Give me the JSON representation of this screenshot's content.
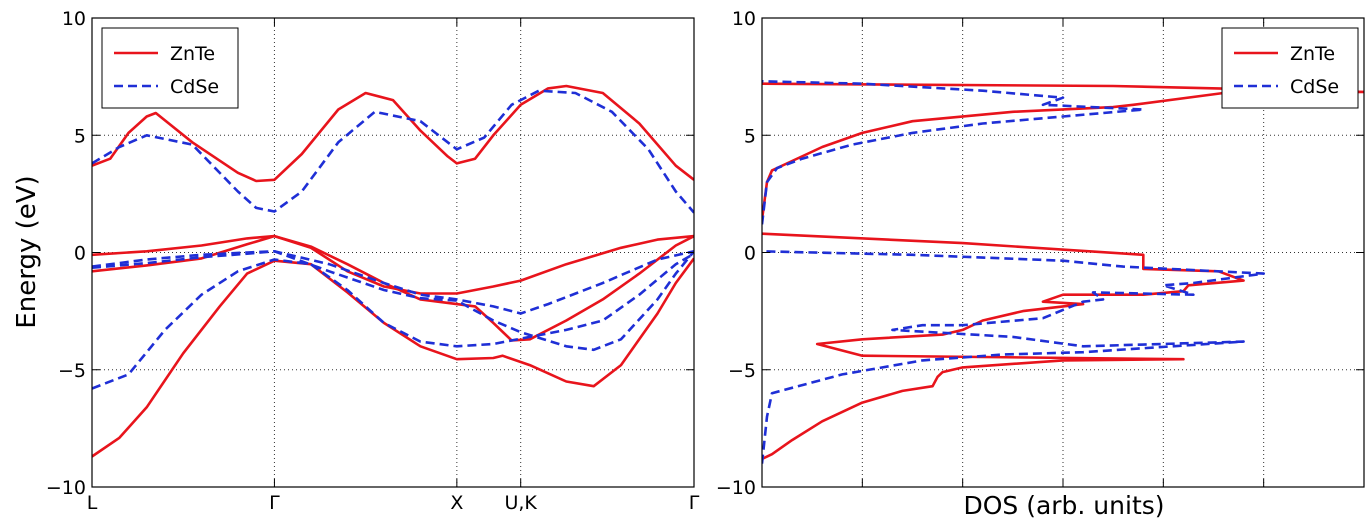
{
  "figure": {
    "y_axis_label": "Energy (eV)",
    "dos_x_label": "DOS (arb. units)",
    "colors": {
      "ZnTe": "#e8141c",
      "CdSe": "#1f2fd6"
    }
  },
  "chart_data": [
    {
      "type": "line",
      "panel": "band-structure",
      "title": "",
      "xlabel": "",
      "ylabel": "Energy (eV)",
      "xlim": [
        0,
        3.3
      ],
      "ylim": [
        -10,
        10
      ],
      "yticks": [
        -10,
        -5,
        0,
        5,
        10
      ],
      "yticklabels": [
        "−10",
        "−5",
        "0",
        "5",
        "10"
      ],
      "xticks": [
        0,
        1.0,
        2.0,
        2.35,
        3.3
      ],
      "xticklabels": [
        "L",
        "Γ",
        "X",
        "U,K",
        "Γ"
      ],
      "grid": true,
      "legend": {
        "position": "top-left",
        "entries": [
          "ZnTe",
          "CdSe"
        ]
      },
      "series": [
        {
          "name": "ZnTe",
          "style": "solid",
          "bands": [
            [
              [
                0,
                -8.7
              ],
              [
                0.15,
                -7.9
              ],
              [
                0.3,
                -6.6
              ],
              [
                0.5,
                -4.3
              ],
              [
                0.7,
                -2.3
              ],
              [
                0.85,
                -0.9
              ],
              [
                1.0,
                -0.35
              ],
              [
                1.2,
                -0.5
              ],
              [
                1.4,
                -1.7
              ],
              [
                1.6,
                -3.0
              ],
              [
                1.8,
                -4.0
              ],
              [
                2.0,
                -4.55
              ],
              [
                2.2,
                -4.5
              ],
              [
                2.25,
                -4.4
              ],
              [
                2.4,
                -4.8
              ],
              [
                2.6,
                -5.5
              ],
              [
                2.75,
                -5.7
              ],
              [
                2.9,
                -4.8
              ],
              [
                3.1,
                -2.6
              ],
              [
                3.2,
                -1.3
              ],
              [
                3.3,
                -0.25
              ]
            ],
            [
              [
                0,
                -0.8
              ],
              [
                0.3,
                -0.55
              ],
              [
                0.6,
                -0.25
              ],
              [
                0.85,
                0.35
              ],
              [
                1.0,
                0.7
              ],
              [
                1.2,
                0.2
              ],
              [
                1.4,
                -0.8
              ],
              [
                1.6,
                -1.45
              ],
              [
                1.8,
                -1.75
              ],
              [
                2.0,
                -1.75
              ],
              [
                2.2,
                -1.45
              ],
              [
                2.35,
                -1.2
              ],
              [
                2.6,
                -0.5
              ],
              [
                2.9,
                0.2
              ],
              [
                3.1,
                0.55
              ],
              [
                3.3,
                0.7
              ]
            ],
            [
              [
                0,
                -0.1
              ],
              [
                0.3,
                0.05
              ],
              [
                0.6,
                0.3
              ],
              [
                0.85,
                0.6
              ],
              [
                1.0,
                0.7
              ],
              [
                1.2,
                0.25
              ],
              [
                1.4,
                -0.5
              ],
              [
                1.6,
                -1.3
              ],
              [
                1.8,
                -2.0
              ],
              [
                2.0,
                -2.2
              ],
              [
                2.1,
                -2.3
              ],
              [
                2.2,
                -3.0
              ],
              [
                2.3,
                -3.75
              ],
              [
                2.4,
                -3.7
              ],
              [
                2.6,
                -2.9
              ],
              [
                2.8,
                -2.0
              ],
              [
                3.0,
                -0.9
              ],
              [
                3.2,
                0.3
              ],
              [
                3.3,
                0.7
              ]
            ],
            [
              [
                0,
                3.7
              ],
              [
                0.1,
                4.0
              ],
              [
                0.2,
                5.1
              ],
              [
                0.3,
                5.8
              ],
              [
                0.35,
                5.95
              ],
              [
                0.55,
                4.7
              ],
              [
                0.8,
                3.4
              ],
              [
                0.9,
                3.05
              ],
              [
                1.0,
                3.1
              ],
              [
                1.15,
                4.2
              ],
              [
                1.35,
                6.1
              ],
              [
                1.5,
                6.8
              ],
              [
                1.65,
                6.5
              ],
              [
                1.8,
                5.2
              ],
              [
                1.95,
                4.1
              ],
              [
                2.0,
                3.8
              ],
              [
                2.1,
                4.0
              ],
              [
                2.2,
                5.0
              ],
              [
                2.35,
                6.3
              ],
              [
                2.5,
                7.0
              ],
              [
                2.6,
                7.1
              ],
              [
                2.8,
                6.8
              ],
              [
                3.0,
                5.5
              ],
              [
                3.2,
                3.7
              ],
              [
                3.3,
                3.1
              ]
            ]
          ]
        },
        {
          "name": "CdSe",
          "style": "dashed",
          "bands": [
            [
              [
                0,
                -5.8
              ],
              [
                0.2,
                -5.2
              ],
              [
                0.4,
                -3.3
              ],
              [
                0.6,
                -1.8
              ],
              [
                0.8,
                -0.8
              ],
              [
                1.0,
                -0.3
              ],
              [
                1.2,
                -0.5
              ],
              [
                1.4,
                -1.6
              ],
              [
                1.6,
                -3.0
              ],
              [
                1.8,
                -3.8
              ],
              [
                2.0,
                -4.0
              ],
              [
                2.2,
                -3.9
              ],
              [
                2.4,
                -3.6
              ],
              [
                2.6,
                -3.3
              ],
              [
                2.8,
                -2.9
              ],
              [
                3.0,
                -1.8
              ],
              [
                3.2,
                -0.5
              ],
              [
                3.3,
                -0.05
              ]
            ],
            [
              [
                0,
                -0.65
              ],
              [
                0.3,
                -0.45
              ],
              [
                0.6,
                -0.2
              ],
              [
                0.85,
                -0.05
              ],
              [
                1.0,
                0.05
              ],
              [
                1.3,
                -0.5
              ],
              [
                1.6,
                -1.3
              ],
              [
                1.8,
                -1.8
              ],
              [
                2.0,
                -2.0
              ],
              [
                2.2,
                -2.3
              ],
              [
                2.35,
                -2.6
              ],
              [
                2.5,
                -2.2
              ],
              [
                2.8,
                -1.3
              ],
              [
                3.1,
                -0.3
              ],
              [
                3.3,
                0.05
              ]
            ],
            [
              [
                0,
                -0.6
              ],
              [
                0.3,
                -0.3
              ],
              [
                0.6,
                -0.1
              ],
              [
                0.85,
                0.0
              ],
              [
                1.0,
                0.05
              ],
              [
                1.3,
                -0.8
              ],
              [
                1.6,
                -1.6
              ],
              [
                1.8,
                -1.95
              ],
              [
                2.0,
                -2.05
              ],
              [
                2.2,
                -2.9
              ],
              [
                2.35,
                -3.4
              ],
              [
                2.6,
                -4.0
              ],
              [
                2.75,
                -4.15
              ],
              [
                2.9,
                -3.7
              ],
              [
                3.1,
                -2.0
              ],
              [
                3.2,
                -0.9
              ],
              [
                3.3,
                0.05
              ]
            ],
            [
              [
                0,
                3.8
              ],
              [
                0.15,
                4.5
              ],
              [
                0.3,
                5.0
              ],
              [
                0.55,
                4.6
              ],
              [
                0.8,
                2.6
              ],
              [
                0.9,
                1.9
              ],
              [
                1.0,
                1.75
              ],
              [
                1.15,
                2.6
              ],
              [
                1.35,
                4.7
              ],
              [
                1.55,
                6.0
              ],
              [
                1.8,
                5.6
              ],
              [
                2.0,
                4.4
              ],
              [
                2.15,
                4.9
              ],
              [
                2.3,
                6.3
              ],
              [
                2.45,
                6.9
              ],
              [
                2.65,
                6.8
              ],
              [
                2.85,
                6.0
              ],
              [
                3.05,
                4.4
              ],
              [
                3.2,
                2.6
              ],
              [
                3.3,
                1.7
              ]
            ]
          ]
        }
      ]
    },
    {
      "type": "line",
      "panel": "density-of-states",
      "title": "",
      "xlabel": "DOS (arb. units)",
      "ylabel": "",
      "xlim": [
        0,
        6
      ],
      "ylim": [
        -10,
        10
      ],
      "yticks": [
        -10,
        -5,
        0,
        5,
        10
      ],
      "yticklabels": [
        "−10",
        "−5",
        "0",
        "5",
        "10"
      ],
      "xticks": [
        0,
        1,
        2,
        3,
        4,
        5,
        6
      ],
      "grid": true,
      "legend": {
        "position": "top-right",
        "entries": [
          "ZnTe",
          "CdSe"
        ]
      },
      "series": [
        {
          "name": "ZnTe",
          "style": "solid",
          "points": [
            [
              0,
              -8.8
            ],
            [
              0.1,
              -8.6
            ],
            [
              0.3,
              -8.0
            ],
            [
              0.6,
              -7.2
            ],
            [
              1.0,
              -6.4
            ],
            [
              1.4,
              -5.9
            ],
            [
              1.7,
              -5.7
            ],
            [
              1.75,
              -5.3
            ],
            [
              1.8,
              -5.1
            ],
            [
              2.0,
              -4.9
            ],
            [
              3.0,
              -4.6
            ],
            [
              4.2,
              -4.55
            ],
            [
              1.0,
              -4.4
            ],
            [
              0.55,
              -3.9
            ],
            [
              1.0,
              -3.7
            ],
            [
              1.8,
              -3.5
            ],
            [
              2.0,
              -3.3
            ],
            [
              2.2,
              -2.9
            ],
            [
              2.6,
              -2.5
            ],
            [
              3.0,
              -2.3
            ],
            [
              3.2,
              -2.2
            ],
            [
              2.8,
              -2.1
            ],
            [
              3.0,
              -1.8
            ],
            [
              3.8,
              -1.8
            ],
            [
              4.2,
              -1.65
            ],
            [
              4.25,
              -1.4
            ],
            [
              4.8,
              -1.2
            ],
            [
              4.55,
              -0.8
            ],
            [
              3.8,
              -0.7
            ],
            [
              3.8,
              -0.1
            ],
            [
              2.0,
              0.4
            ],
            [
              0,
              0.8
            ],
            null,
            [
              0,
              1.4
            ],
            [
              0.05,
              3.0
            ],
            [
              0.1,
              3.5
            ],
            [
              0.3,
              3.9
            ],
            [
              0.6,
              4.5
            ],
            [
              1.0,
              5.1
            ],
            [
              1.5,
              5.6
            ],
            [
              2.5,
              6.0
            ],
            [
              3.5,
              6.2
            ],
            [
              3.7,
              6.3
            ],
            [
              4.6,
              6.8
            ],
            [
              6.0,
              6.85
            ],
            [
              3.5,
              7.1
            ],
            [
              0,
              7.2
            ]
          ]
        },
        {
          "name": "CdSe",
          "style": "dashed",
          "points": [
            [
              0,
              -9.0
            ],
            [
              0.05,
              -7.0
            ],
            [
              0.1,
              -6.0
            ],
            [
              0.8,
              -5.2
            ],
            [
              1.6,
              -4.6
            ],
            [
              2.4,
              -4.35
            ],
            [
              3.2,
              -4.25
            ],
            [
              4.8,
              -3.8
            ],
            [
              3.2,
              -4.0
            ],
            [
              2.5,
              -3.6
            ],
            [
              1.3,
              -3.3
            ],
            [
              1.6,
              -3.1
            ],
            [
              2.0,
              -3.1
            ],
            [
              2.8,
              -2.8
            ],
            [
              3.2,
              -2.1
            ],
            [
              3.4,
              -2.0
            ],
            [
              3.3,
              -1.7
            ],
            [
              4.3,
              -1.8
            ],
            [
              4.0,
              -1.4
            ],
            [
              4.3,
              -1.3
            ],
            [
              5.0,
              -0.9
            ],
            [
              3.6,
              -0.6
            ],
            [
              3.0,
              -0.35
            ],
            [
              1.5,
              -0.1
            ],
            [
              0,
              0.05
            ],
            null,
            [
              0,
              1.2
            ],
            [
              0.05,
              3.0
            ],
            [
              0.15,
              3.6
            ],
            [
              0.4,
              4.0
            ],
            [
              0.9,
              4.6
            ],
            [
              1.5,
              5.1
            ],
            [
              2.2,
              5.5
            ],
            [
              3.0,
              5.8
            ],
            [
              3.8,
              6.1
            ],
            [
              2.8,
              6.3
            ],
            [
              3.0,
              6.6
            ],
            [
              2.2,
              6.9
            ],
            [
              1.0,
              7.2
            ],
            [
              0,
              7.3
            ]
          ]
        }
      ]
    }
  ]
}
